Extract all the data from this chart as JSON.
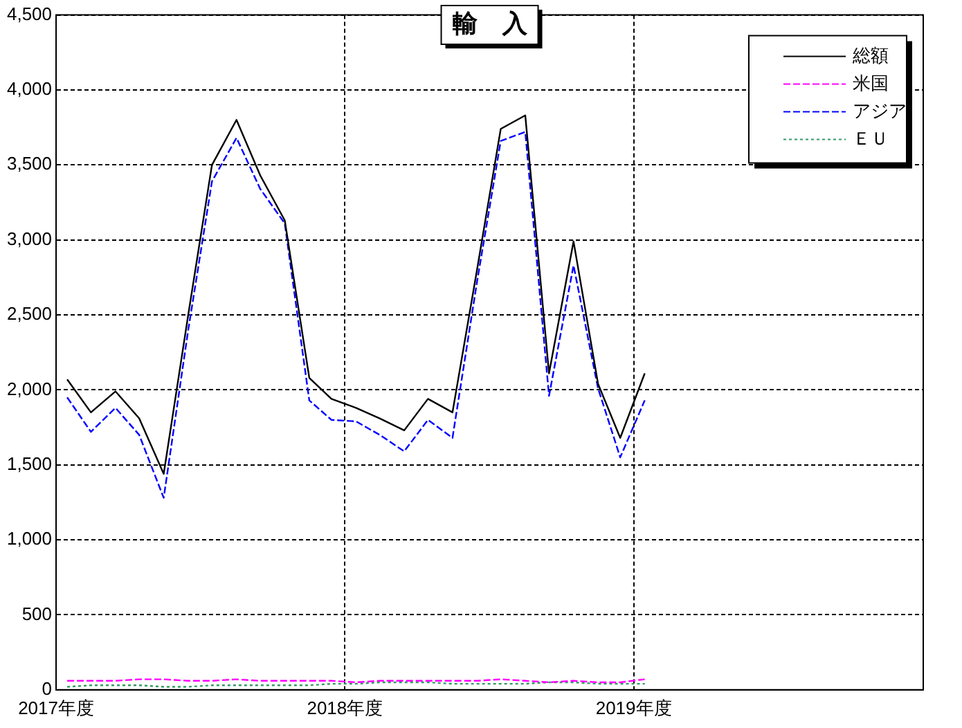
{
  "chart_data": {
    "type": "line",
    "title": "輸　入",
    "x": [
      "2017-04-15",
      "2017-05-15",
      "2017-06-15",
      "2017-07-15",
      "2017-08-15",
      "2017-09-15",
      "2017-10-15",
      "2017-11-15",
      "2017-12-15",
      "2018-01-15",
      "2018-02-15",
      "2018-03-15",
      "2018-04-15",
      "2018-05-15",
      "2018-06-15",
      "2018-07-15",
      "2018-08-15",
      "2018-09-15",
      "2018-10-15",
      "2018-11-15",
      "2018-12-15",
      "2019-01-15",
      "2019-02-15",
      "2019-03-15",
      "2019-04-15"
    ],
    "xlim": [
      "2017-04",
      "2020-04"
    ],
    "xticks": [
      {
        "value": "2017-04",
        "label": "2017年度"
      },
      {
        "value": "2018-04",
        "label": "2018年度"
      },
      {
        "value": "2019-04",
        "label": "2019年度"
      }
    ],
    "ylim": [
      0,
      4500
    ],
    "yticks": [
      0,
      {
        "value": 500,
        "label": "500"
      },
      {
        "value": 1000,
        "label": "1,000"
      },
      {
        "value": 1500,
        "label": "1,500"
      },
      {
        "value": 2000,
        "label": "2,000"
      },
      {
        "value": 2500,
        "label": "2,500"
      },
      {
        "value": 3000,
        "label": "3,000"
      },
      {
        "value": 3500,
        "label": "3,500"
      },
      {
        "value": 4000,
        "label": "4,000"
      },
      {
        "value": 4500,
        "label": "4,500"
      }
    ],
    "grid": true,
    "legend": "top right",
    "marker": "none",
    "series": [
      {
        "name": "総額",
        "color": "#000000",
        "line_style": "solid",
        "values": [
          2070,
          1850,
          1990,
          1810,
          1440,
          2500,
          3500,
          3800,
          3430,
          3130,
          2080,
          1940,
          1880,
          1810,
          1730,
          1940,
          1850,
          2800,
          3740,
          3830,
          2110,
          2990,
          2040,
          1680,
          2110
        ]
      },
      {
        "name": "米国",
        "color": "#ff00ff",
        "line_style": "dashed",
        "values": [
          60,
          60,
          60,
          70,
          70,
          60,
          60,
          70,
          60,
          60,
          60,
          60,
          50,
          60,
          60,
          60,
          60,
          60,
          70,
          60,
          50,
          60,
          50,
          50,
          70
        ]
      },
      {
        "name": "アジア",
        "color": "#0000ff",
        "line_style": "dashed",
        "values": [
          1950,
          1720,
          1880,
          1700,
          1280,
          2400,
          3390,
          3680,
          3340,
          3110,
          1930,
          1800,
          1790,
          1700,
          1590,
          1800,
          1680,
          2720,
          3660,
          3720,
          1960,
          2830,
          2010,
          1550,
          1930
        ]
      },
      {
        "name": "ＥＵ",
        "color": "#339966",
        "line_style": "dotted",
        "values": [
          20,
          30,
          30,
          30,
          20,
          20,
          30,
          30,
          30,
          30,
          30,
          40,
          40,
          50,
          50,
          50,
          40,
          40,
          40,
          40,
          50,
          50,
          40,
          40,
          40
        ]
      }
    ]
  }
}
